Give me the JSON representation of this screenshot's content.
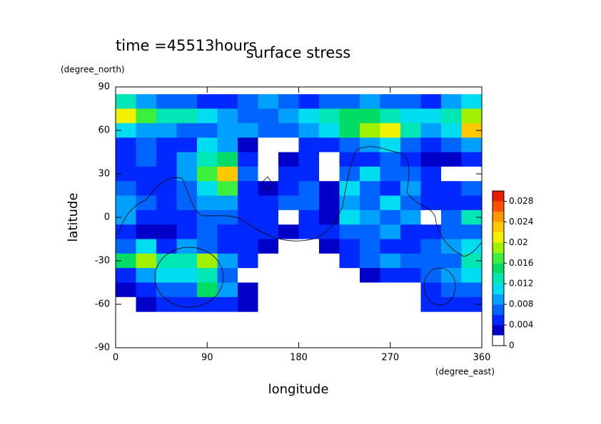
{
  "chart_data": {
    "type": "contour",
    "title": "surface stress",
    "annotation": "time =45513hours",
    "x_label": "longitude",
    "x_unit": "(degree_east)",
    "y_label": "latitude",
    "y_unit": "(degree_north)",
    "xlim": [
      0,
      360
    ],
    "xticks": [
      0,
      90,
      180,
      270,
      360
    ],
    "ylim": [
      -90,
      90
    ],
    "yticks": [
      -90,
      -60,
      -30,
      0,
      30,
      60,
      90
    ],
    "x": [
      10,
      30,
      50,
      70,
      90,
      110,
      130,
      150,
      170,
      190,
      210,
      230,
      250,
      270,
      290,
      310,
      330,
      350
    ],
    "y": [
      80,
      70,
      60,
      50,
      40,
      30,
      20,
      10,
      0,
      -10,
      -20,
      -30,
      -40,
      -50,
      -60
    ],
    "z": [
      [
        0.012,
        0.008,
        0.006,
        0.006,
        0.004,
        0.004,
        0.006,
        0.008,
        0.006,
        0.004,
        0.006,
        0.006,
        0.008,
        0.006,
        0.006,
        0.004,
        0.008,
        0.01
      ],
      [
        0.02,
        0.016,
        0.012,
        0.012,
        0.01,
        0.008,
        0.006,
        0.006,
        0.008,
        0.01,
        0.012,
        0.014,
        0.014,
        0.012,
        0.01,
        0.01,
        0.012,
        0.018
      ],
      [
        0.01,
        0.008,
        0.008,
        0.006,
        0.006,
        0.008,
        0.008,
        0.006,
        0.006,
        0.008,
        0.01,
        0.014,
        0.018,
        0.02,
        0.012,
        0.008,
        0.01,
        0.022
      ],
      [
        0.004,
        0.006,
        0.004,
        0.004,
        0.01,
        0.008,
        0.002,
        0,
        0,
        0.004,
        0.004,
        0.006,
        0.008,
        0.01,
        0.006,
        0.004,
        0.006,
        0.008
      ],
      [
        0.004,
        0.006,
        0.004,
        0.008,
        0.012,
        0.014,
        0.004,
        0,
        0.002,
        0.004,
        0,
        0.004,
        0.004,
        0.006,
        0.004,
        0.002,
        0.002,
        0.004
      ],
      [
        0.004,
        0.004,
        0.004,
        0.008,
        0.016,
        0.022,
        0.006,
        0,
        0.004,
        0.004,
        0,
        0.006,
        0.01,
        0.006,
        0.006,
        0.004,
        0,
        0
      ],
      [
        0.006,
        0.004,
        0.004,
        0.006,
        0.01,
        0.016,
        0.004,
        0.002,
        0.004,
        0.006,
        0.002,
        0.01,
        0.006,
        0.004,
        0.008,
        0.004,
        0.004,
        0.006
      ],
      [
        0.008,
        0.006,
        0.004,
        0.006,
        0.008,
        0.008,
        0.004,
        0.004,
        0.006,
        0.006,
        0.002,
        0.008,
        0.006,
        0.01,
        0.006,
        0.004,
        0.004,
        0.004
      ],
      [
        0.008,
        0.004,
        0.004,
        0.004,
        0.006,
        0.006,
        0.004,
        0.004,
        0,
        0.004,
        0.002,
        0.01,
        0.008,
        0.006,
        0.008,
        0,
        0.006,
        0.012
      ],
      [
        0.004,
        0.002,
        0.002,
        0.004,
        0.006,
        0.004,
        0.004,
        0.004,
        0.002,
        0.004,
        0.004,
        0.006,
        0.006,
        0.008,
        0.004,
        0.004,
        0.006,
        0.006
      ],
      [
        0.006,
        0.01,
        0.004,
        0.008,
        0.006,
        0.004,
        0.004,
        0.002,
        0,
        0,
        0.002,
        0.004,
        0.006,
        0.004,
        0.004,
        0.006,
        0.008,
        0.01
      ],
      [
        0.014,
        0.018,
        0.012,
        0.012,
        0.018,
        0.008,
        0.004,
        0,
        0,
        0,
        0,
        0.004,
        0.006,
        0.008,
        0.006,
        0.006,
        0.006,
        0.012
      ],
      [
        0.004,
        0.008,
        0.01,
        0.01,
        0.012,
        0.006,
        0,
        0,
        0,
        0,
        0,
        0,
        0.002,
        0.004,
        0.004,
        0.006,
        0.008,
        0.01
      ],
      [
        0.002,
        0.004,
        0.006,
        0.006,
        0.014,
        0.008,
        0.002,
        0,
        0,
        0,
        0,
        0,
        0,
        0,
        0,
        0.004,
        0.006,
        0.006
      ],
      [
        0,
        0.002,
        0.004,
        0.004,
        0.004,
        0.004,
        0.002,
        0,
        0,
        0,
        0,
        0,
        0,
        0,
        0,
        0.004,
        0.004,
        0.004
      ]
    ],
    "levels": [
      0,
      0.002,
      0.004,
      0.006,
      0.008,
      0.01,
      0.012,
      0.014,
      0.016,
      0.018,
      0.02,
      0.022,
      0.024,
      0.026,
      0.028,
      0.03
    ],
    "colors": [
      "#ffffff",
      "#0000c8",
      "#0028ff",
      "#0064ff",
      "#00a0ff",
      "#00dcf0",
      "#00e6b4",
      "#00dc64",
      "#3cf03c",
      "#a0f000",
      "#f0f000",
      "#ffc800",
      "#ff9600",
      "#ff5000",
      "#e61e00"
    ],
    "colorbar_ticks": [
      0,
      0.004,
      0.008,
      0.012,
      0.016,
      0.02,
      0.024,
      0.028
    ]
  }
}
